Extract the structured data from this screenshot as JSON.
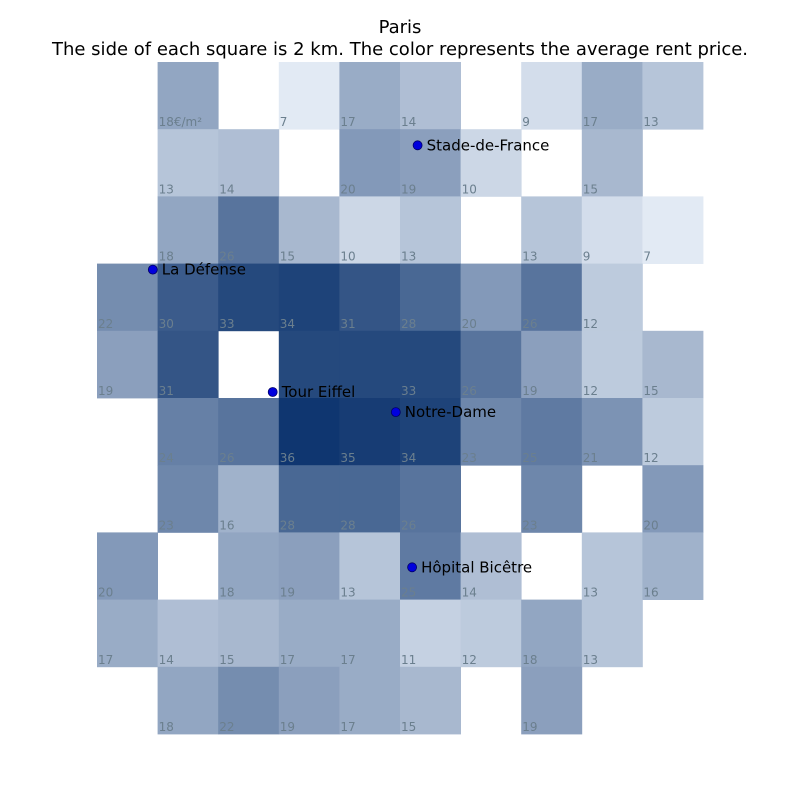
{
  "chart_data": {
    "type": "heatmap",
    "title": "Paris",
    "subtitle": "The side of each square is 2 km. The color represents the average rent price.",
    "value_unit": "€/m²",
    "colormap": {
      "low": "#f0f6fd",
      "high": "#08306b",
      "min": 5,
      "max": 37
    },
    "grid": [
      [
        null,
        18,
        null,
        7,
        17,
        14,
        null,
        9,
        17,
        13
      ],
      [
        null,
        13,
        14,
        null,
        20,
        19,
        10,
        null,
        15,
        null
      ],
      [
        null,
        18,
        26,
        15,
        10,
        13,
        null,
        13,
        9,
        7
      ],
      [
        22,
        30,
        33,
        34,
        31,
        28,
        20,
        26,
        12,
        null
      ],
      [
        19,
        31,
        null,
        33,
        33,
        33,
        26,
        19,
        12,
        15
      ],
      [
        null,
        24,
        26,
        36,
        35,
        34,
        23,
        25,
        21,
        12
      ],
      [
        null,
        23,
        16,
        28,
        28,
        26,
        null,
        23,
        null,
        20
      ],
      [
        20,
        null,
        18,
        19,
        13,
        25,
        14,
        null,
        13,
        16
      ],
      [
        17,
        14,
        15,
        17,
        17,
        11,
        12,
        18,
        13,
        null
      ],
      [
        null,
        18,
        22,
        19,
        17,
        15,
        null,
        19,
        null,
        null
      ]
    ],
    "grid_labels": [
      [
        null,
        "18€/m²",
        null,
        "7",
        "17",
        "14",
        null,
        "9",
        "17",
        "13"
      ],
      [
        null,
        "13",
        "14",
        null,
        "20",
        "19",
        "10",
        null,
        "15",
        null
      ],
      [
        null,
        "18",
        "26",
        "15",
        "10",
        "13",
        null,
        "13",
        "9",
        "7"
      ],
      [
        "22",
        "30",
        "33",
        "34",
        "31",
        "28",
        "20",
        "26",
        "12",
        null
      ],
      [
        "19",
        "31",
        null,
        null,
        null,
        "33",
        "26",
        "19",
        "12",
        "15"
      ],
      [
        null,
        "24",
        "26",
        "36",
        "35",
        "34",
        "23",
        "25",
        "21",
        "12"
      ],
      [
        null,
        "23",
        "16",
        "28",
        "28",
        "26",
        null,
        "23",
        null,
        "20"
      ],
      [
        "20",
        null,
        "18",
        "19",
        "13",
        "25",
        "14",
        null,
        "13",
        "16"
      ],
      [
        "17",
        "14",
        "15",
        "17",
        "17",
        "11",
        "12",
        "18",
        "13",
        null
      ],
      [
        null,
        "18",
        "22",
        "19",
        "17",
        "15",
        null,
        "19",
        null,
        null
      ]
    ],
    "landmarks": [
      {
        "name": "Stade-de-France",
        "col": 5.29,
        "row": 1.24
      },
      {
        "name": "La Défense",
        "col": 0.92,
        "row": 3.09
      },
      {
        "name": "Tour Eiffel",
        "col": 2.9,
        "row": 4.91
      },
      {
        "name": "Notre-Dame",
        "col": 4.93,
        "row": 5.21
      },
      {
        "name": "Hôpital Bicêtre",
        "col": 5.2,
        "row": 7.52
      }
    ]
  }
}
